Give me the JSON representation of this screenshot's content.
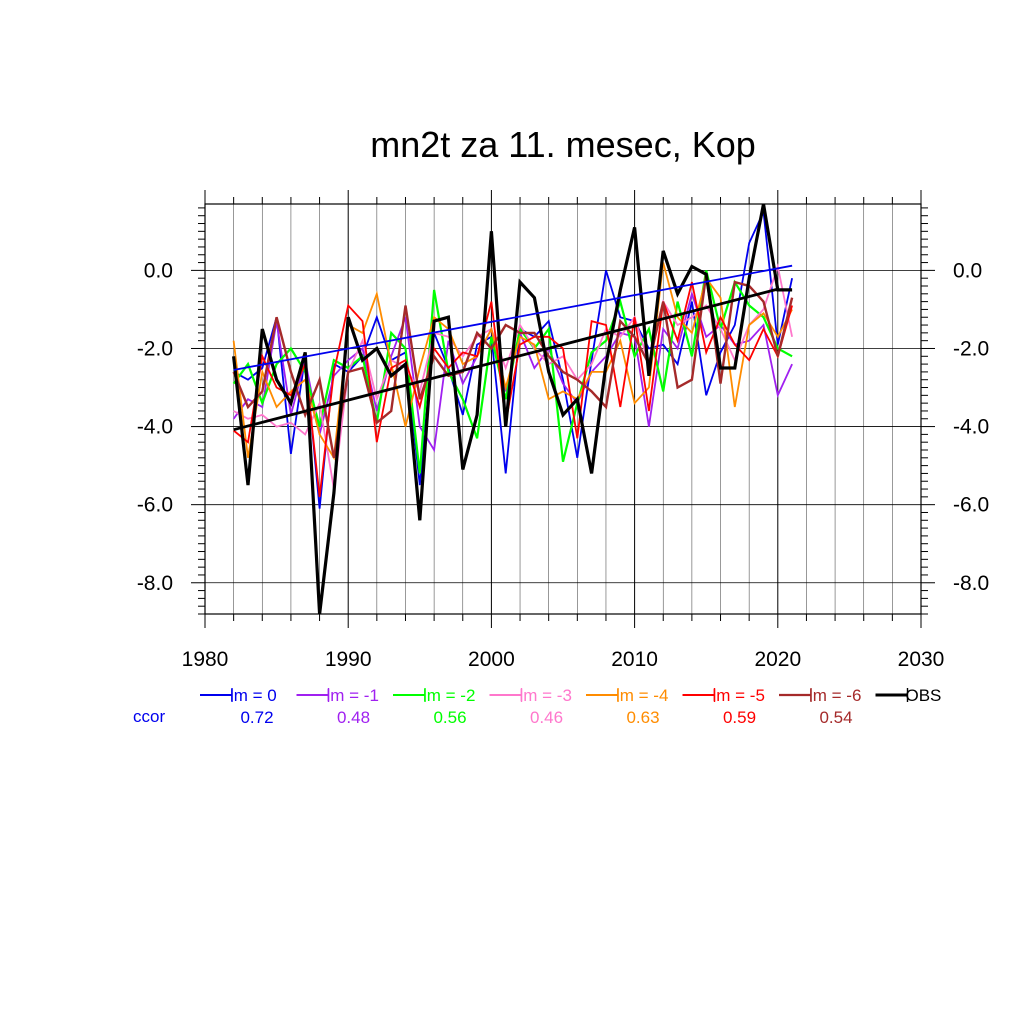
{
  "chart_data": {
    "type": "line",
    "title": "mn2t za 11. mesec, Kop",
    "xlabel": "",
    "ylabel": "",
    "xlim": [
      1980,
      2030
    ],
    "ylim": [
      -8.8,
      1.7
    ],
    "x_ticks": [
      1980,
      1990,
      2000,
      2010,
      2020,
      2030
    ],
    "x_tick_labels": [
      "1980",
      "1990",
      "2000",
      "2010",
      "2020",
      "2030"
    ],
    "y_ticks": [
      -8,
      -6,
      -4,
      -2,
      0
    ],
    "y_tick_labels": [
      "-8.0",
      "-6.0",
      "-4.0",
      "-2.0",
      "0.0"
    ],
    "grid": true,
    "legend_position": "bottom",
    "ccor_label": "ccor",
    "years": [
      1982,
      1983,
      1984,
      1985,
      1986,
      1987,
      1988,
      1989,
      1990,
      1991,
      1992,
      1993,
      1994,
      1995,
      1996,
      1997,
      1998,
      1999,
      2000,
      2001,
      2002,
      2003,
      2004,
      2005,
      2006,
      2007,
      2008,
      2009,
      2010,
      2011,
      2012,
      2013,
      2014,
      2015,
      2016,
      2017,
      2018,
      2019,
      2020,
      2021
    ],
    "series": [
      {
        "name": "lm = 0",
        "ccor": "0.72",
        "color": "#0000ee",
        "width": 1.8,
        "values": [
          -2.6,
          -2.8,
          -2.5,
          -1.2,
          -4.7,
          -2.2,
          -6.1,
          -2.4,
          -2.6,
          -2.2,
          -1.2,
          -2.3,
          -2.1,
          -5.5,
          -1.6,
          -2.5,
          -3.7,
          -1.9,
          -1.7,
          -5.2,
          -1.5,
          -1.7,
          -1.3,
          -2.8,
          -4.8,
          -2.3,
          0.0,
          -1.2,
          -1.3,
          -2.0,
          -1.9,
          -2.4,
          -0.8,
          -3.2,
          -2.1,
          -1.4,
          0.7,
          1.5,
          -1.9,
          -0.2
        ]
      },
      {
        "name": "lm = -1",
        "ccor": "0.48",
        "color": "#a020f0",
        "width": 1.8,
        "values": [
          -3.8,
          -3.3,
          -3.5,
          -1.3,
          -3.7,
          -2.3,
          -4.2,
          -2.7,
          -2.3,
          -2.0,
          -3.6,
          -2.2,
          -1.2,
          -4.0,
          -4.6,
          -1.8,
          -2.9,
          -2.2,
          -1.5,
          -3.1,
          -1.6,
          -2.5,
          -2.0,
          -2.9,
          -3.4,
          -2.6,
          -2.2,
          -1.6,
          -1.7,
          -4.0,
          -1.5,
          -2.0,
          -0.6,
          -1.7,
          -1.4,
          -1.9,
          -1.8,
          -1.4,
          -3.2,
          -2.4
        ]
      },
      {
        "name": "lm = -2",
        "ccor": "0.56",
        "color": "#00ff00",
        "width": 2.2,
        "values": [
          -2.9,
          -2.4,
          -3.4,
          -2.4,
          -2.0,
          -2.6,
          -4.0,
          -2.3,
          -2.5,
          -2.2,
          -3.9,
          -1.6,
          -2.0,
          -5.2,
          -0.5,
          -2.6,
          -3.3,
          -4.3,
          -1.7,
          -3.3,
          -1.5,
          -2.0,
          -1.5,
          -4.9,
          -3.4,
          -2.1,
          -1.8,
          -0.8,
          -2.2,
          -1.5,
          -3.1,
          -0.8,
          -2.2,
          0.0,
          -1.5,
          -0.3,
          -0.9,
          -1.2,
          -2.0,
          -2.2
        ]
      },
      {
        "name": "lm = -3",
        "ccor": "0.46",
        "color": "#ff77cc",
        "width": 1.8,
        "values": [
          -3.6,
          -3.8,
          -3.7,
          -4.0,
          -3.9,
          -4.2,
          -3.4,
          -5.6,
          -2.6,
          -1.8,
          -3.3,
          -2.3,
          -2.5,
          -3.1,
          -1.6,
          -1.7,
          -2.2,
          -1.7,
          -1.5,
          -2.5,
          -1.4,
          -2.0,
          -2.4,
          -2.2,
          -2.8,
          -2.4,
          -1.5,
          -1.7,
          -1.2,
          -2.4,
          -0.8,
          -1.4,
          -1.2,
          -0.9,
          -1.5,
          -2.3,
          -1.4,
          -1.0,
          0.1,
          -1.7
        ]
      },
      {
        "name": "lm = -4",
        "ccor": "0.63",
        "color": "#ff8c00",
        "width": 1.8,
        "values": [
          -1.8,
          -4.8,
          -2.6,
          -3.5,
          -3.1,
          -2.8,
          -4.2,
          -4.8,
          -1.4,
          -1.6,
          -0.6,
          -2.4,
          -4.0,
          -2.5,
          -1.2,
          -1.5,
          -2.4,
          -2.2,
          -1.5,
          -3.0,
          -1.7,
          -1.9,
          -3.3,
          -3.1,
          -3.3,
          -2.6,
          -2.6,
          -1.8,
          -3.4,
          -3.0,
          0.2,
          -1.2,
          -1.6,
          -0.2,
          -0.7,
          -3.5,
          -1.4,
          -1.1,
          -1.7,
          -1.0
        ]
      },
      {
        "name": "lm = -5",
        "ccor": "0.59",
        "color": "#ff0000",
        "width": 1.8,
        "values": [
          -4.1,
          -4.4,
          -2.2,
          -3.0,
          -3.2,
          -2.4,
          -5.8,
          -2.6,
          -0.9,
          -1.3,
          -4.4,
          -2.5,
          -2.3,
          -3.5,
          -2.0,
          -2.5,
          -2.1,
          -2.2,
          -0.8,
          -3.9,
          -1.9,
          -1.7,
          -1.7,
          -2.0,
          -4.3,
          -1.3,
          -1.4,
          -3.5,
          -1.2,
          -3.6,
          -0.8,
          -1.8,
          -0.3,
          -2.1,
          -1.2,
          -1.9,
          -2.3,
          -1.5,
          -2.2,
          -0.9
        ]
      },
      {
        "name": "lm = -6",
        "ccor": "0.54",
        "color": "#a52a2a",
        "width": 2.4,
        "values": [
          -2.6,
          -3.5,
          -3.1,
          -1.2,
          -2.6,
          -3.7,
          -2.8,
          -4.8,
          -2.6,
          -2.5,
          -3.9,
          -3.6,
          -0.9,
          -3.3,
          -2.2,
          -2.7,
          -2.6,
          -1.6,
          -2.0,
          -1.4,
          -1.6,
          -1.6,
          -2.2,
          -2.6,
          -2.8,
          -3.1,
          -3.5,
          -1.3,
          -1.7,
          -2.4,
          -0.8,
          -3.0,
          -2.8,
          -0.1,
          -2.9,
          -0.3,
          -0.4,
          -0.8,
          -2.2,
          -0.7
        ]
      },
      {
        "name": "OBS",
        "ccor": "",
        "color": "#000000",
        "width": 3.2,
        "values": [
          -2.2,
          -5.5,
          -1.5,
          -2.8,
          -3.4,
          -2.1,
          -8.8,
          -5.7,
          -1.2,
          -2.3,
          -2.0,
          -2.7,
          -2.4,
          -6.4,
          -1.3,
          -1.2,
          -5.1,
          -3.7,
          1.0,
          -4.0,
          -0.3,
          -0.7,
          -2.6,
          -3.7,
          -3.3,
          -5.2,
          -2.4,
          -0.5,
          1.1,
          -2.7,
          0.5,
          -0.6,
          0.1,
          -0.1,
          -2.5,
          -2.5,
          -0.2,
          1.7,
          -0.5,
          -0.5
        ]
      }
    ],
    "trends": [
      {
        "series": "lm = 0",
        "color": "#0000ee",
        "width": 1.8,
        "x": [
          1982,
          2021
        ],
        "y": [
          -2.55,
          0.12
        ]
      },
      {
        "series": "OBS",
        "color": "#000000",
        "width": 2.8,
        "x": [
          1982,
          2020
        ],
        "y": [
          -4.08,
          -0.48
        ]
      }
    ]
  }
}
